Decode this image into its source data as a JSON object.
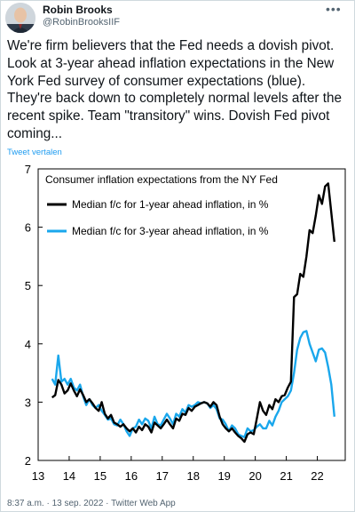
{
  "author": {
    "name": "Robin Brooks",
    "handle": "@RobinBrooksIIF",
    "avatar_icon": "person-avatar-icon"
  },
  "tweet": {
    "text": "We're firm believers that the Fed needs a dovish pivot. Look at 3-year ahead inflation expectations in the New York Fed survey of consumer expectations (blue). They're back down to completely normal levels after the recent spike. Team \"transitory\" wins. Dovish Fed pivot coming...",
    "translate_label": "Tweet vertalen",
    "more_icon": "more-options-icon"
  },
  "footer": {
    "meta": "8:37 a.m. · 13 sep. 2022 · Twitter Web App"
  },
  "chart_data": {
    "type": "line",
    "title": "Consumer inflation expectations from the NY Fed",
    "xlabel": "",
    "ylabel": "",
    "xlim": [
      13,
      22.9
    ],
    "ylim": [
      2,
      7
    ],
    "xticks": [
      "13",
      "14",
      "15",
      "16",
      "17",
      "18",
      "19",
      "20",
      "21",
      "22"
    ],
    "yticks": [
      "2",
      "3",
      "4",
      "5",
      "6",
      "7"
    ],
    "grid": false,
    "legend_placement": "top-left",
    "series": [
      {
        "name": "Median f/c for 1-year ahead inflation, in %",
        "color": "#000000",
        "x": [
          13.45,
          13.55,
          13.65,
          13.75,
          13.85,
          13.95,
          14.05,
          14.15,
          14.25,
          14.35,
          14.45,
          14.55,
          14.65,
          14.75,
          14.85,
          14.95,
          15.05,
          15.15,
          15.25,
          15.35,
          15.45,
          15.55,
          15.65,
          15.75,
          15.85,
          15.95,
          16.05,
          16.15,
          16.25,
          16.35,
          16.45,
          16.55,
          16.65,
          16.75,
          16.85,
          16.95,
          17.05,
          17.15,
          17.25,
          17.35,
          17.45,
          17.55,
          17.65,
          17.75,
          17.85,
          17.95,
          18.05,
          18.15,
          18.25,
          18.35,
          18.45,
          18.55,
          18.65,
          18.75,
          18.85,
          18.95,
          19.05,
          19.15,
          19.25,
          19.35,
          19.45,
          19.55,
          19.65,
          19.75,
          19.85,
          19.95,
          20.05,
          20.15,
          20.25,
          20.35,
          20.45,
          20.55,
          20.65,
          20.75,
          20.85,
          20.95,
          21.05,
          21.15,
          21.25,
          21.35,
          21.45,
          21.55,
          21.65,
          21.75,
          21.85,
          21.95,
          22.05,
          22.15,
          22.25,
          22.35,
          22.45,
          22.55
        ],
        "values": [
          3.08,
          3.12,
          3.38,
          3.3,
          3.15,
          3.2,
          3.32,
          3.2,
          3.1,
          3.22,
          3.12,
          3.0,
          3.05,
          2.98,
          2.9,
          2.85,
          3.0,
          2.8,
          2.72,
          2.78,
          2.65,
          2.62,
          2.58,
          2.62,
          2.55,
          2.5,
          2.55,
          2.48,
          2.58,
          2.52,
          2.62,
          2.58,
          2.48,
          2.65,
          2.6,
          2.55,
          2.62,
          2.7,
          2.62,
          2.55,
          2.72,
          2.68,
          2.8,
          2.78,
          2.9,
          2.85,
          2.92,
          2.95,
          2.98,
          3.0,
          2.98,
          2.92,
          3.0,
          2.95,
          2.75,
          2.62,
          2.55,
          2.5,
          2.55,
          2.48,
          2.42,
          2.38,
          2.32,
          2.45,
          2.48,
          2.45,
          2.72,
          3.0,
          2.85,
          2.78,
          2.95,
          2.88,
          3.05,
          3.0,
          3.1,
          3.12,
          3.25,
          3.35,
          4.8,
          4.85,
          5.2,
          5.15,
          5.5,
          5.95,
          5.9,
          6.2,
          6.55,
          6.4,
          6.7,
          6.75,
          6.25,
          5.75
        ]
      },
      {
        "name": "Median f/c for 3-year ahead inflation, in %",
        "color": "#1aa7ec",
        "x": [
          13.45,
          13.55,
          13.65,
          13.75,
          13.85,
          13.95,
          14.05,
          14.15,
          14.25,
          14.35,
          14.45,
          14.55,
          14.65,
          14.75,
          14.85,
          14.95,
          15.05,
          15.15,
          15.25,
          15.35,
          15.45,
          15.55,
          15.65,
          15.75,
          15.85,
          15.95,
          16.05,
          16.15,
          16.25,
          16.35,
          16.45,
          16.55,
          16.65,
          16.75,
          16.85,
          16.95,
          17.05,
          17.15,
          17.25,
          17.35,
          17.45,
          17.55,
          17.65,
          17.75,
          17.85,
          17.95,
          18.05,
          18.15,
          18.25,
          18.35,
          18.45,
          18.55,
          18.65,
          18.75,
          18.85,
          18.95,
          19.05,
          19.15,
          19.25,
          19.35,
          19.45,
          19.55,
          19.65,
          19.75,
          19.85,
          19.95,
          20.05,
          20.15,
          20.25,
          20.35,
          20.45,
          20.55,
          20.65,
          20.75,
          20.85,
          20.95,
          21.05,
          21.15,
          21.25,
          21.35,
          21.45,
          21.55,
          21.65,
          21.75,
          21.85,
          21.95,
          22.05,
          22.15,
          22.25,
          22.35,
          22.45,
          22.55
        ],
        "values": [
          3.4,
          3.3,
          3.8,
          3.35,
          3.4,
          3.3,
          3.4,
          3.25,
          3.2,
          3.3,
          3.1,
          2.95,
          3.05,
          2.95,
          2.9,
          2.95,
          2.85,
          2.78,
          2.7,
          2.72,
          2.62,
          2.6,
          2.7,
          2.62,
          2.5,
          2.42,
          2.55,
          2.58,
          2.7,
          2.62,
          2.72,
          2.68,
          2.55,
          2.75,
          2.62,
          2.6,
          2.7,
          2.8,
          2.72,
          2.62,
          2.8,
          2.75,
          2.88,
          2.82,
          2.95,
          2.92,
          2.95,
          3.0,
          2.98,
          3.0,
          2.98,
          2.9,
          2.95,
          2.88,
          2.72,
          2.7,
          2.62,
          2.5,
          2.6,
          2.55,
          2.45,
          2.42,
          2.4,
          2.55,
          2.5,
          2.52,
          2.58,
          2.62,
          2.55,
          2.55,
          2.68,
          2.6,
          2.75,
          2.85,
          3.0,
          3.05,
          3.1,
          3.2,
          3.5,
          3.9,
          4.1,
          4.2,
          4.22,
          4.0,
          3.85,
          3.7,
          3.9,
          3.92,
          3.85,
          3.6,
          3.3,
          2.75
        ]
      }
    ]
  }
}
